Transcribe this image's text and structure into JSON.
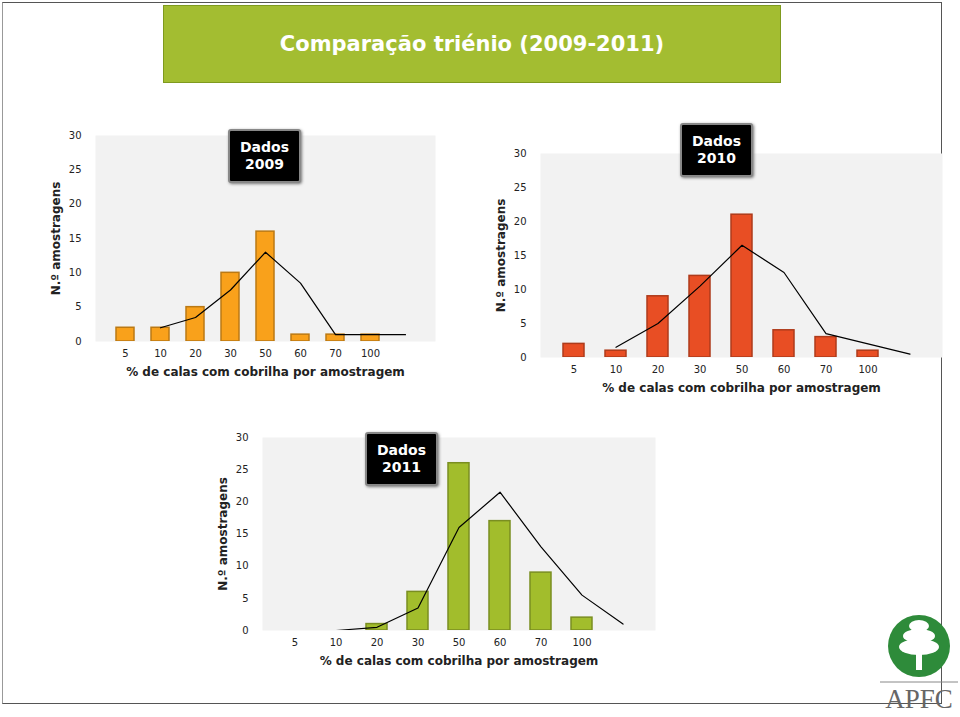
{
  "title": "Comparação triénio (2009-2011)",
  "logo": "APFC",
  "chart_data": [
    {
      "type": "bar",
      "annotation": "Dados\n2009",
      "xlabel": "% de calas com cobrilha por amostragem",
      "ylabel": "N.º amostragens",
      "categories": [
        "5",
        "10",
        "20",
        "30",
        "50",
        "60",
        "70",
        "100",
        null
      ],
      "series": [
        {
          "type": "bar",
          "color": "#f9a11b",
          "values": [
            2,
            2,
            5,
            10,
            16,
            1,
            1,
            1,
            null
          ]
        },
        {
          "type": "line",
          "color": "#000000",
          "values": [
            null,
            2,
            3.5,
            7.5,
            13,
            8.5,
            1,
            1,
            1
          ]
        }
      ],
      "ylim": [
        0,
        30
      ],
      "yticks": [
        0,
        5,
        10,
        15,
        20,
        25,
        30
      ],
      "grid": false
    },
    {
      "type": "bar",
      "annotation": "Dados\n2010",
      "xlabel": "% de calas com cobrilha por amostragem",
      "ylabel": "N.º amostragens",
      "categories": [
        "5",
        "10",
        "20",
        "30",
        "50",
        "60",
        "70",
        "100",
        null
      ],
      "series": [
        {
          "type": "bar",
          "color": "#e84e24",
          "values": [
            2,
            1,
            9,
            12,
            21,
            4,
            3,
            1,
            null
          ]
        },
        {
          "type": "line",
          "color": "#000000",
          "values": [
            null,
            1.5,
            5,
            10.5,
            16.5,
            12.5,
            3.5,
            2,
            0.5
          ]
        }
      ],
      "ylim": [
        0,
        30
      ],
      "yticks": [
        0,
        5,
        10,
        15,
        20,
        25,
        30
      ],
      "grid": false
    },
    {
      "type": "bar",
      "annotation": "Dados\n2011",
      "xlabel": "% de calas com cobrilha por amostragem",
      "ylabel": "N.º amostragens",
      "categories": [
        "5",
        "10",
        "20",
        "30",
        "50",
        "60",
        "70",
        "100",
        null
      ],
      "series": [
        {
          "type": "bar",
          "color": "#a2bd2c",
          "values": [
            0,
            0,
            1,
            6,
            26,
            17,
            9,
            2,
            null
          ]
        },
        {
          "type": "line",
          "color": "#000000",
          "values": [
            null,
            0,
            0.5,
            3.5,
            16,
            21.5,
            13,
            5.5,
            1
          ]
        }
      ],
      "ylim": [
        0,
        30
      ],
      "yticks": [
        0,
        5,
        10,
        15,
        20,
        25,
        30
      ],
      "grid": false
    }
  ]
}
